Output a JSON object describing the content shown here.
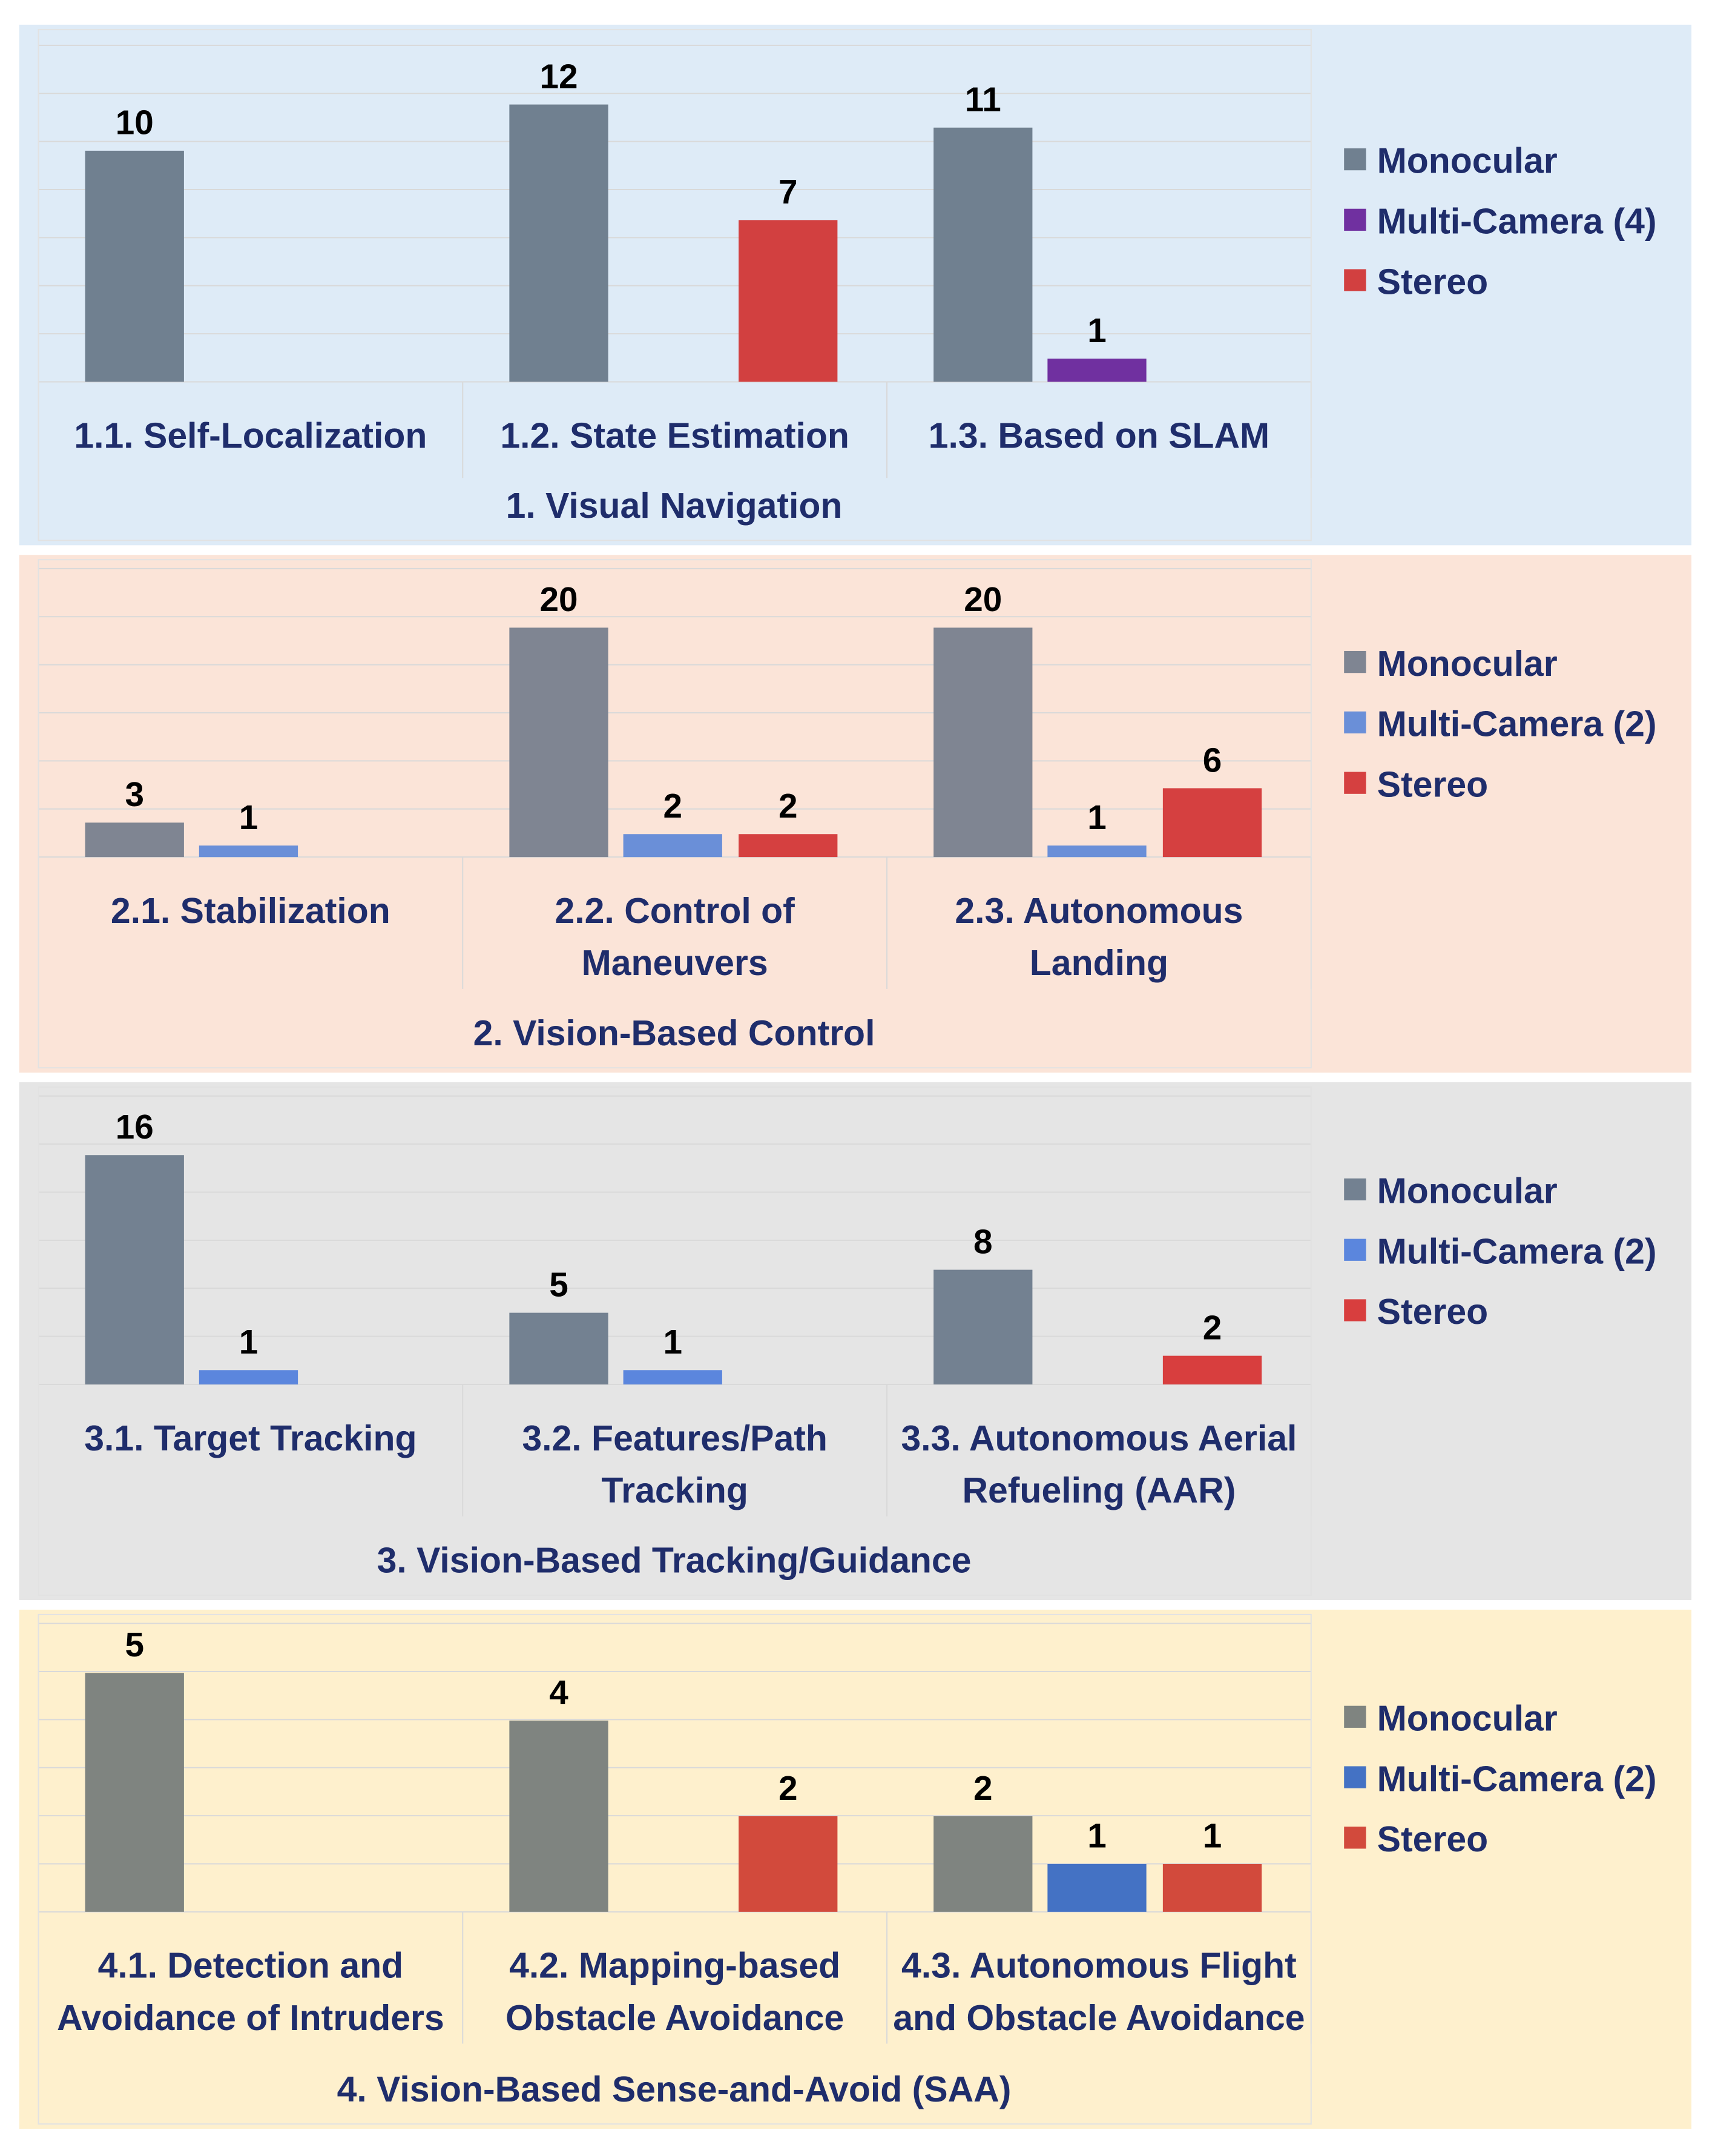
{
  "legend_swatch_colors": {
    "Monocular": "#6e7f91",
    "Multi-Camera": "#6a8fd8",
    "Stereo": "#d24040"
  },
  "chart_data": [
    {
      "type": "bar",
      "title": "1. Visual Navigation",
      "background": "#deebf7",
      "categories": [
        [
          "1.1. Self-Localization"
        ],
        [
          "1.2. State Estimation"
        ],
        [
          "1.3. Based on SLAM"
        ]
      ],
      "series": [
        {
          "name": "Monocular",
          "color": "#708090",
          "values": [
            10,
            12,
            11
          ]
        },
        {
          "name": "Multi-Camera (4)",
          "color": "#7030a0",
          "values": [
            null,
            null,
            1
          ]
        },
        {
          "name": "Stereo",
          "color": "#d24040",
          "values": [
            null,
            7,
            null
          ]
        }
      ],
      "ylim": [
        0,
        12.6
      ],
      "grid": true,
      "legend": "right"
    },
    {
      "type": "bar",
      "title": "2. Vision-Based Control",
      "background": "#fbe4d8",
      "categories": [
        [
          "2.1. Stabilization"
        ],
        [
          "2.2. Control of",
          "Maneuvers"
        ],
        [
          "2.3. Autonomous",
          "Landing"
        ]
      ],
      "series": [
        {
          "name": "Monocular",
          "color": "#7f8592",
          "values": [
            3,
            20,
            20
          ]
        },
        {
          "name": "Multi-Camera (2)",
          "color": "#6a8fd8",
          "values": [
            1,
            2,
            1
          ]
        },
        {
          "name": "Stereo",
          "color": "#d54040",
          "values": [
            null,
            2,
            6
          ]
        }
      ],
      "ylim": [
        0,
        20
      ],
      "grid": true,
      "legend": "right"
    },
    {
      "type": "bar",
      "title": "3. Vision-Based Tracking/Guidance",
      "background": "#e5e5e5",
      "categories": [
        [
          "3.1. Target Tracking"
        ],
        [
          "3.2. Features/Path",
          "Tracking"
        ],
        [
          "3.3. Autonomous Aerial",
          "Refueling (AAR)"
        ]
      ],
      "series": [
        {
          "name": "Monocular",
          "color": "#738191",
          "values": [
            16,
            5,
            8
          ]
        },
        {
          "name": "Multi-Camera (2)",
          "color": "#5b86dd",
          "values": [
            1,
            1,
            null
          ]
        },
        {
          "name": "Stereo",
          "color": "#d83e3e",
          "values": [
            null,
            null,
            2
          ]
        }
      ],
      "ylim": [
        0,
        16
      ],
      "grid": true,
      "legend": "right"
    },
    {
      "type": "bar",
      "title": "4. Vision-Based Sense-and-Avoid (SAA)",
      "background": "#fef0cd",
      "categories": [
        [
          "4.1. Detection and",
          "Avoidance of Intruders"
        ],
        [
          "4.2. Mapping-based",
          "Obstacle Avoidance"
        ],
        [
          "4.3. Autonomous Flight",
          "and Obstacle Avoidance"
        ]
      ],
      "series": [
        {
          "name": "Monocular",
          "color": "#7f8480",
          "values": [
            5,
            4,
            2
          ]
        },
        {
          "name": "Multi-Camera (2)",
          "color": "#4472c4",
          "values": [
            null,
            null,
            1
          ]
        },
        {
          "name": "Stereo",
          "color": "#d24a3c",
          "values": [
            null,
            2,
            1
          ]
        }
      ],
      "ylim": [
        0,
        5
      ],
      "grid": true,
      "legend": "right"
    }
  ]
}
